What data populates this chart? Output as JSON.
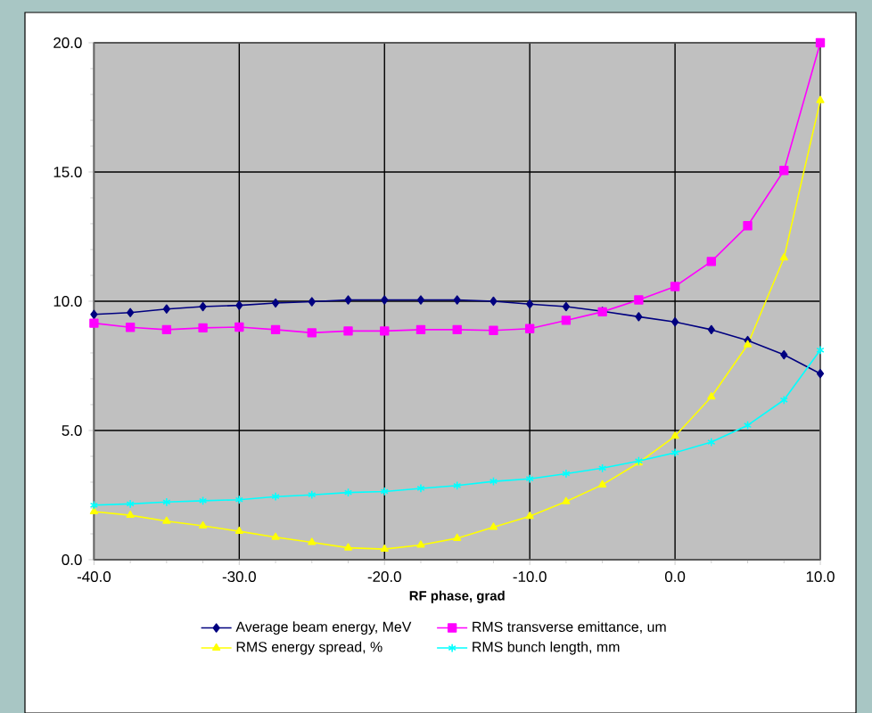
{
  "chart_data": {
    "type": "line",
    "xlabel": "RF phase, grad",
    "x": [
      -40,
      -37.5,
      -35,
      -32.5,
      -30,
      -27.5,
      -25,
      -22.5,
      -20,
      -17.5,
      -15,
      -12.5,
      -10,
      -7.5,
      -5,
      -2.5,
      0,
      2.5,
      5,
      7.5,
      10
    ],
    "xlim": [
      -40,
      10
    ],
    "ylim": [
      0,
      20
    ],
    "xticks": [
      {
        "value": -40,
        "label": "-40.0"
      },
      {
        "value": -30,
        "label": "-30.0"
      },
      {
        "value": -20,
        "label": "-20.0"
      },
      {
        "value": -10,
        "label": "-10.0"
      },
      {
        "value": 0,
        "label": "0.0"
      },
      {
        "value": 10,
        "label": "10.0"
      }
    ],
    "yticks": [
      {
        "value": 0,
        "label": "0.0"
      },
      {
        "value": 5,
        "label": "5.0"
      },
      {
        "value": 10,
        "label": "10.0"
      },
      {
        "value": 15,
        "label": "15.0"
      },
      {
        "value": 20,
        "label": "20.0"
      }
    ],
    "grid": true,
    "legend": "bottom",
    "line_style": "solid",
    "series": [
      {
        "name": "Average beam energy, MeV",
        "color": "#000080",
        "marker": "diamond",
        "values": [
          9.49,
          9.56,
          9.7,
          9.79,
          9.84,
          9.93,
          9.98,
          10.05,
          10.05,
          10.05,
          10.05,
          10.0,
          9.89,
          9.79,
          9.61,
          9.4,
          9.2,
          8.9,
          8.48,
          7.93,
          7.2
        ]
      },
      {
        "name": "RMS transverse emittance, um",
        "color": "#ff00ff",
        "marker": "square",
        "values": [
          9.15,
          8.99,
          8.9,
          8.97,
          9.0,
          8.9,
          8.78,
          8.85,
          8.85,
          8.9,
          8.9,
          8.87,
          8.94,
          9.26,
          9.59,
          10.05,
          10.57,
          11.54,
          12.92,
          15.06,
          20.0
        ]
      },
      {
        "name": "RMS energy spread, %",
        "color": "#ffff00",
        "marker": "triangle",
        "values": [
          1.86,
          1.72,
          1.49,
          1.31,
          1.1,
          0.87,
          0.67,
          0.46,
          0.41,
          0.57,
          0.83,
          1.26,
          1.68,
          2.25,
          2.9,
          3.75,
          4.78,
          6.3,
          8.32,
          11.68,
          17.77
        ]
      },
      {
        "name": "RMS bunch length, mm",
        "color": "#00ffff",
        "marker": "cross",
        "values": [
          2.11,
          2.16,
          2.23,
          2.28,
          2.32,
          2.44,
          2.51,
          2.6,
          2.64,
          2.76,
          2.87,
          3.03,
          3.13,
          3.33,
          3.54,
          3.82,
          4.14,
          4.55,
          5.2,
          6.18,
          8.11
        ]
      }
    ]
  }
}
